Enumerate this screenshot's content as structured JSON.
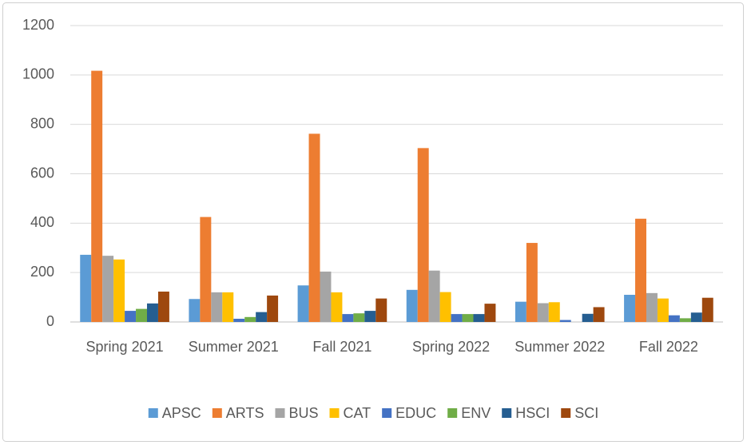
{
  "chart_data": {
    "type": "bar",
    "categories": [
      "Spring 2021",
      "Summer 2021",
      "Fall 2021",
      "Spring 2022",
      "Summer 2022",
      "Fall 2022"
    ],
    "series": [
      {
        "name": "APSC",
        "color": "#5b9bd5",
        "values": [
          272,
          93,
          148,
          130,
          82,
          110
        ]
      },
      {
        "name": "ARTS",
        "color": "#ed7d31",
        "values": [
          1017,
          425,
          762,
          704,
          320,
          418
        ]
      },
      {
        "name": "BUS",
        "color": "#a5a5a5",
        "values": [
          268,
          120,
          204,
          208,
          76,
          117
        ]
      },
      {
        "name": "CAT",
        "color": "#ffc000",
        "values": [
          253,
          120,
          120,
          121,
          80,
          95
        ]
      },
      {
        "name": "EDUC",
        "color": "#4472c4",
        "values": [
          45,
          13,
          32,
          32,
          8,
          27
        ]
      },
      {
        "name": "ENV",
        "color": "#70ad47",
        "values": [
          53,
          20,
          35,
          32,
          0,
          15
        ]
      },
      {
        "name": "HSCI",
        "color": "#255e91",
        "values": [
          75,
          40,
          45,
          32,
          33,
          38
        ]
      },
      {
        "name": "SCI",
        "color": "#9e480e",
        "values": [
          123,
          107,
          95,
          74,
          60,
          98
        ]
      }
    ],
    "ylim": [
      0,
      1200
    ],
    "yticks": [
      0,
      200,
      400,
      600,
      800,
      1000,
      1200
    ],
    "grid": true,
    "legend": "bottom"
  }
}
